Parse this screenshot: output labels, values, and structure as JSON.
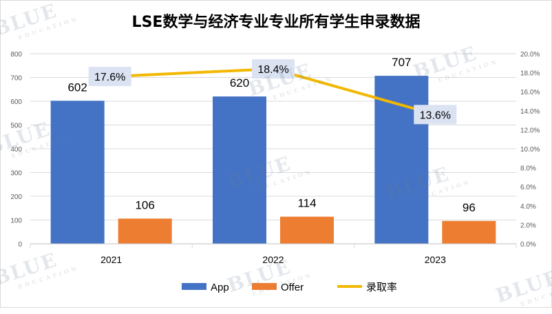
{
  "chart_data": {
    "type": "bar",
    "title": "LSE数学与经济专业专业所有学生申录数据",
    "categories": [
      "2021",
      "2022",
      "2023"
    ],
    "series": [
      {
        "name": "App",
        "type": "bar",
        "color": "#4472c4",
        "values": [
          602,
          620,
          707
        ]
      },
      {
        "name": "Offer",
        "type": "bar",
        "color": "#ed7d31",
        "values": [
          106,
          114,
          96
        ]
      },
      {
        "name": "录取率",
        "type": "line",
        "color": "#f2b800",
        "axis": "right",
        "values": [
          17.6,
          18.4,
          13.6
        ],
        "labels": [
          "17.6%",
          "18.4%",
          "13.6%"
        ]
      }
    ],
    "ylim": [
      0,
      800
    ],
    "yticks": [
      "0",
      "100",
      "200",
      "300",
      "400",
      "500",
      "600",
      "700",
      "800"
    ],
    "y2lim": [
      0,
      20
    ],
    "y2ticks": [
      "0.0%",
      "2.0%",
      "4.0%",
      "6.0%",
      "8.0%",
      "10.0%",
      "12.0%",
      "14.0%",
      "16.0%",
      "18.0%",
      "20.0%"
    ],
    "legend_position": "bottom",
    "grid": true
  },
  "watermark": {
    "text": "BLUE",
    "subtext": "EDUCATION"
  }
}
